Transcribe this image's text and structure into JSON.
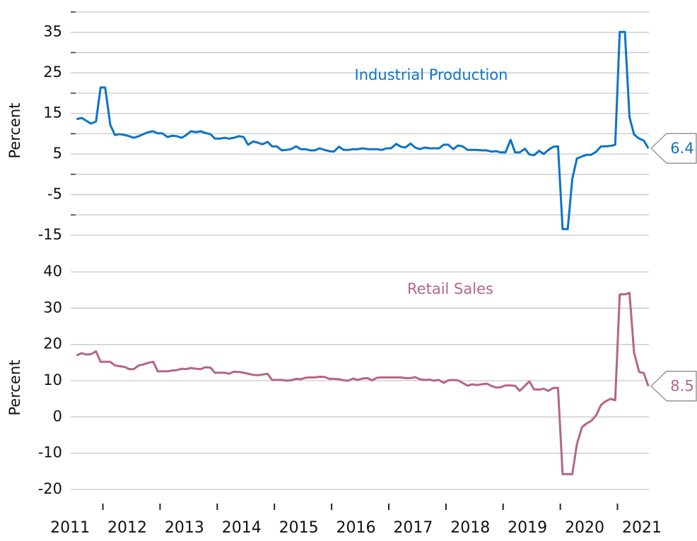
{
  "chart_data": [
    {
      "type": "line",
      "title": "Industrial Production",
      "ylabel": "Percent",
      "ylim": [
        -15,
        40
      ],
      "yticks": [
        35,
        25,
        15,
        5,
        -5,
        -15
      ],
      "minor_yticks": [
        40,
        30,
        20,
        10,
        0,
        -10
      ],
      "grid": true,
      "series": [
        {
          "name": "Industrial Production",
          "color": "#0b74c8",
          "values": [
            13.6,
            13.9,
            13.2,
            12.5,
            13.0,
            21.4,
            21.4,
            12.2,
            9.7,
            9.9,
            9.7,
            9.4,
            9.0,
            9.4,
            9.9,
            10.4,
            10.6,
            10.1,
            10.1,
            9.2,
            9.5,
            9.4,
            9.0,
            9.7,
            10.6,
            10.4,
            10.6,
            10.2,
            9.9,
            8.8,
            8.8,
            9.0,
            8.8,
            9.0,
            9.4,
            9.2,
            7.3,
            8.1,
            7.8,
            7.4,
            8.0,
            6.9,
            6.9,
            5.9,
            6.0,
            6.2,
            6.9,
            6.2,
            6.2,
            5.9,
            5.9,
            6.4,
            6.0,
            5.7,
            5.6,
            6.8,
            6.0,
            6.0,
            6.2,
            6.2,
            6.4,
            6.2,
            6.2,
            6.2,
            6.0,
            6.4,
            6.4,
            7.5,
            6.8,
            6.6,
            7.6,
            6.6,
            6.2,
            6.6,
            6.4,
            6.4,
            6.4,
            7.3,
            7.3,
            6.2,
            7.1,
            6.9,
            6.0,
            6.0,
            6.0,
            5.9,
            5.9,
            5.6,
            5.7,
            5.4,
            5.4,
            8.5,
            5.4,
            5.4,
            6.3,
            4.9,
            4.7,
            5.8,
            5.0,
            6.0,
            6.8,
            6.9,
            -13.5,
            -13.5,
            -1.1,
            3.9,
            4.4,
            4.8,
            4.8,
            5.6,
            6.9,
            6.9,
            7.0,
            7.3,
            35.1,
            35.1,
            14.1,
            9.8,
            8.8,
            8.3,
            6.4
          ]
        }
      ]
    },
    {
      "type": "line",
      "title": "Retail Sales",
      "ylabel": "Percent",
      "ylim": [
        -20,
        40
      ],
      "yticks": [
        40,
        30,
        20,
        10,
        0,
        -10,
        -20
      ],
      "grid": true,
      "xlim": [
        2011.4,
        2021.55
      ],
      "xticks": [
        {
          "value": 2011.5,
          "label": "2011"
        },
        {
          "value": 2012.5,
          "label": "2012"
        },
        {
          "value": 2013.5,
          "label": "2013"
        },
        {
          "value": 2014.5,
          "label": "2014"
        },
        {
          "value": 2015.5,
          "label": "2015"
        },
        {
          "value": 2016.5,
          "label": "2016"
        },
        {
          "value": 2017.5,
          "label": "2017"
        },
        {
          "value": 2018.5,
          "label": "2018"
        },
        {
          "value": 2019.5,
          "label": "2019"
        },
        {
          "value": 2020.5,
          "label": "2020"
        },
        {
          "value": 2021.5,
          "label": "2021"
        }
      ],
      "minor_xticks": [
        2012,
        2013,
        2014,
        2015,
        2016,
        2017,
        2018,
        2019,
        2020,
        2021
      ],
      "x": [
        2011.54,
        2011.63,
        2011.71,
        2011.79,
        2011.88,
        2011.96,
        2012.04,
        2012.13,
        2012.21,
        2012.29,
        2012.38,
        2012.46,
        2012.54,
        2012.63,
        2012.71,
        2012.79,
        2012.88,
        2012.96,
        2013.04,
        2013.13,
        2013.21,
        2013.29,
        2013.38,
        2013.46,
        2013.54,
        2013.63,
        2013.71,
        2013.79,
        2013.88,
        2013.96,
        2014.04,
        2014.13,
        2014.21,
        2014.29,
        2014.38,
        2014.46,
        2014.54,
        2014.63,
        2014.71,
        2014.79,
        2014.88,
        2014.96,
        2015.04,
        2015.13,
        2015.21,
        2015.29,
        2015.38,
        2015.46,
        2015.54,
        2015.63,
        2015.71,
        2015.79,
        2015.88,
        2015.96,
        2016.04,
        2016.13,
        2016.21,
        2016.29,
        2016.38,
        2016.46,
        2016.54,
        2016.63,
        2016.71,
        2016.79,
        2016.88,
        2016.96,
        2017.04,
        2017.13,
        2017.21,
        2017.29,
        2017.38,
        2017.46,
        2017.54,
        2017.63,
        2017.71,
        2017.79,
        2017.88,
        2017.96,
        2018.04,
        2018.13,
        2018.21,
        2018.29,
        2018.38,
        2018.46,
        2018.54,
        2018.63,
        2018.71,
        2018.79,
        2018.88,
        2018.96,
        2019.04,
        2019.13,
        2019.21,
        2019.29,
        2019.38,
        2019.46,
        2019.54,
        2019.63,
        2019.71,
        2019.79,
        2019.88,
        2019.96,
        2020.04,
        2020.13,
        2020.21,
        2020.29,
        2020.38,
        2020.46,
        2020.54,
        2020.63,
        2020.71,
        2020.79,
        2020.88,
        2020.96,
        2021.04,
        2021.13,
        2021.21,
        2021.29,
        2021.38,
        2021.46,
        2021.54
      ],
      "series": [
        {
          "name": "Retail Sales",
          "color": "#b5648a",
          "values": [
            17.0,
            17.6,
            17.2,
            17.3,
            18.1,
            15.2,
            15.2,
            15.2,
            14.2,
            14.0,
            13.8,
            13.2,
            13.2,
            14.2,
            14.5,
            14.9,
            15.2,
            12.6,
            12.6,
            12.6,
            12.8,
            12.9,
            13.3,
            13.2,
            13.5,
            13.3,
            13.2,
            13.7,
            13.6,
            12.2,
            12.2,
            12.2,
            11.9,
            12.5,
            12.4,
            12.2,
            11.9,
            11.6,
            11.5,
            11.7,
            11.9,
            10.2,
            10.2,
            10.2,
            10.0,
            10.1,
            10.5,
            10.4,
            10.8,
            10.9,
            10.9,
            11.1,
            11.0,
            10.5,
            10.5,
            10.4,
            10.1,
            10.0,
            10.6,
            10.2,
            10.6,
            10.7,
            10.1,
            10.8,
            10.9,
            10.9,
            10.9,
            10.9,
            10.9,
            10.7,
            10.7,
            11.0,
            10.4,
            10.2,
            10.3,
            10.0,
            10.2,
            9.4,
            10.1,
            10.2,
            10.1,
            9.4,
            8.6,
            9.0,
            8.8,
            9.0,
            9.2,
            8.6,
            8.1,
            8.2,
            8.7,
            8.7,
            8.6,
            7.2,
            8.6,
            9.8,
            7.6,
            7.5,
            7.8,
            7.2,
            8.0,
            8.0,
            -15.8,
            -15.8,
            -15.8,
            -7.5,
            -2.8,
            -1.8,
            -1.1,
            0.5,
            3.3,
            4.3,
            5.0,
            4.6,
            33.8,
            33.8,
            34.2,
            17.7,
            12.4,
            12.1,
            8.5
          ]
        }
      ]
    }
  ]
}
